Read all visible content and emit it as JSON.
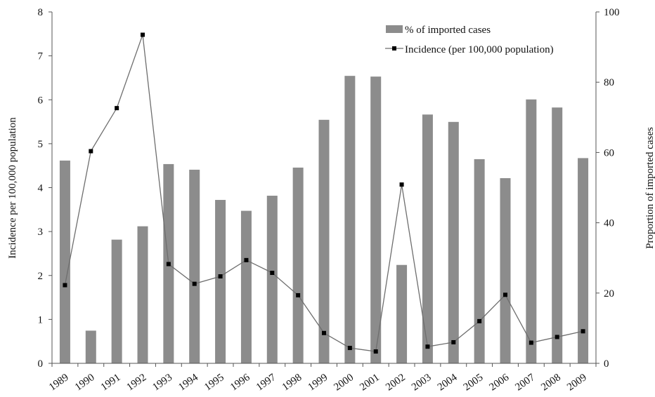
{
  "chart_data": {
    "type": "bar+line",
    "categories": [
      "1989",
      "1990",
      "1991",
      "1992",
      "1993",
      "1994",
      "1995",
      "1996",
      "1997",
      "1998",
      "1999",
      "2000",
      "2001",
      "2002",
      "2003",
      "2004",
      "2005",
      "2006",
      "2007",
      "2008",
      "2009"
    ],
    "series": [
      {
        "name": "% of imported cases",
        "type": "bar",
        "axis": "right",
        "color": "#8c8c8c",
        "values": [
          57.7,
          9.3,
          35.2,
          39.0,
          56.7,
          55.1,
          46.5,
          43.4,
          47.7,
          55.7,
          69.3,
          81.8,
          81.6,
          28.0,
          70.8,
          68.7,
          58.1,
          52.7,
          75.1,
          72.8,
          58.4
        ]
      },
      {
        "name": "Incidence (per 100,000 population)",
        "type": "line",
        "axis": "left",
        "color": "#6e6e6e",
        "marker_color": "#000000",
        "values": [
          1.78,
          4.83,
          5.81,
          7.48,
          2.26,
          1.81,
          1.98,
          2.35,
          2.06,
          1.55,
          0.69,
          0.35,
          0.27,
          4.07,
          0.38,
          0.48,
          0.96,
          1.56,
          0.47,
          0.6,
          0.73
        ]
      }
    ],
    "ylabel_left": "Incidence per 100,000 population",
    "ylabel_right": "Proportion of imported cases",
    "ylim_left": [
      0,
      8
    ],
    "ylim_right": [
      0,
      100
    ],
    "yticks_left": [
      "0",
      "1",
      "2",
      "3",
      "4",
      "5",
      "6",
      "7",
      "8"
    ],
    "yticks_right": [
      "0",
      "20",
      "40",
      "60",
      "80",
      "100"
    ],
    "grid": false,
    "legend_position": "top-right"
  }
}
